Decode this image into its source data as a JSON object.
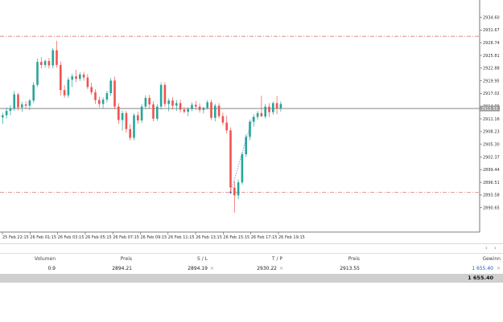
{
  "chart": {
    "price_min": 2888.0,
    "price_max": 2936.0,
    "price_ticks": [
      "2934.60",
      "2931.67",
      "2928.74",
      "2925.81",
      "2922.88",
      "2919.95",
      "2917.02",
      "2914.09",
      "2911.16",
      "2908.23",
      "2905.30",
      "2902.37",
      "2899.44",
      "2896.51",
      "2893.58",
      "2890.65"
    ],
    "current_price_label": "2913.55",
    "tp_level": 2930.22,
    "sl_level": 2894.19,
    "entry_level": 2894.21,
    "current_price": 2913.55,
    "time_labels": [
      "25 Feb 22:15",
      "26 Feb 01:15",
      "26 Feb 03:15",
      "26 Feb 05:15",
      "26 Feb 07:15",
      "26 Feb 09:15",
      "26 Feb 11:15",
      "26 Feb 13:15",
      "26 Feb 15:15",
      "26 Feb 17:15",
      "26 Feb 19:15"
    ],
    "colors": {
      "bull": "#26a69a",
      "bear": "#ef5350",
      "level": "#e07878",
      "current": "#888888",
      "label_bg": "#9a9a9a"
    },
    "candles": [
      [
        2911.5,
        2912.6,
        2910.0,
        2912.0
      ],
      [
        2912.0,
        2913.8,
        2911.2,
        2913.0
      ],
      [
        2913.0,
        2914.3,
        2912.0,
        2913.6
      ],
      [
        2913.6,
        2917.6,
        2913.0,
        2916.8
      ],
      [
        2916.8,
        2917.2,
        2913.1,
        2913.8
      ],
      [
        2913.8,
        2915.1,
        2912.8,
        2914.5
      ],
      [
        2914.5,
        2915.2,
        2913.6,
        2914.2
      ],
      [
        2914.2,
        2915.8,
        2913.2,
        2915.4
      ],
      [
        2915.4,
        2919.6,
        2914.8,
        2919.0
      ],
      [
        2919.0,
        2925.1,
        2918.5,
        2924.3
      ],
      [
        2924.3,
        2925.4,
        2922.8,
        2923.6
      ],
      [
        2923.6,
        2924.9,
        2923.0,
        2924.5
      ],
      [
        2924.5,
        2925.2,
        2922.8,
        2923.5
      ],
      [
        2923.5,
        2927.5,
        2922.8,
        2927.0
      ],
      [
        2927.0,
        2929.2,
        2923.0,
        2923.6
      ],
      [
        2923.6,
        2924.4,
        2916.6,
        2917.8
      ],
      [
        2917.8,
        2918.9,
        2916.0,
        2916.6
      ],
      [
        2916.6,
        2920.8,
        2916.0,
        2920.2
      ],
      [
        2920.2,
        2921.6,
        2918.5,
        2921.0
      ],
      [
        2921.0,
        2922.5,
        2919.6,
        2920.4
      ],
      [
        2920.4,
        2921.9,
        2919.9,
        2921.4
      ],
      [
        2921.4,
        2922.0,
        2920.0,
        2920.7
      ],
      [
        2920.7,
        2921.5,
        2918.0,
        2918.5
      ],
      [
        2918.5,
        2919.5,
        2916.7,
        2917.3
      ],
      [
        2917.3,
        2918.0,
        2914.6,
        2915.5
      ],
      [
        2915.5,
        2916.3,
        2913.8,
        2914.6
      ],
      [
        2914.6,
        2916.1,
        2913.6,
        2915.6
      ],
      [
        2915.6,
        2917.6,
        2915.0,
        2917.1
      ],
      [
        2917.1,
        2920.6,
        2916.5,
        2920.0
      ],
      [
        2920.0,
        2920.9,
        2913.4,
        2914.0
      ],
      [
        2914.0,
        2914.8,
        2910.0,
        2910.9
      ],
      [
        2910.9,
        2913.1,
        2908.5,
        2912.5
      ],
      [
        2912.5,
        2913.0,
        2908.0,
        2908.8
      ],
      [
        2908.8,
        2909.9,
        2906.2,
        2906.8
      ],
      [
        2906.8,
        2912.5,
        2906.2,
        2912.0
      ],
      [
        2912.0,
        2912.8,
        2910.0,
        2910.8
      ],
      [
        2910.8,
        2914.6,
        2910.2,
        2914.0
      ],
      [
        2914.0,
        2916.6,
        2913.5,
        2916.0
      ],
      [
        2916.0,
        2916.7,
        2913.6,
        2914.5
      ],
      [
        2914.5,
        2915.2,
        2910.6,
        2911.2
      ],
      [
        2911.2,
        2914.6,
        2910.7,
        2914.0
      ],
      [
        2914.0,
        2919.6,
        2913.3,
        2919.0
      ],
      [
        2919.0,
        2919.6,
        2914.0,
        2914.6
      ],
      [
        2914.6,
        2915.9,
        2912.9,
        2915.4
      ],
      [
        2915.4,
        2916.2,
        2913.3,
        2914.2
      ],
      [
        2914.2,
        2915.5,
        2913.0,
        2914.8
      ],
      [
        2914.8,
        2915.6,
        2912.6,
        2913.3
      ],
      [
        2913.3,
        2913.9,
        2912.4,
        2912.8
      ],
      [
        2912.8,
        2913.9,
        2911.8,
        2913.4
      ],
      [
        2913.4,
        2915.0,
        2912.9,
        2914.4
      ],
      [
        2914.4,
        2915.3,
        2913.2,
        2914.0
      ],
      [
        2914.0,
        2914.7,
        2912.6,
        2913.2
      ],
      [
        2913.2,
        2914.0,
        2912.4,
        2913.7
      ],
      [
        2913.7,
        2915.5,
        2913.3,
        2915.0
      ],
      [
        2915.0,
        2915.6,
        2910.9,
        2911.4
      ],
      [
        2911.4,
        2914.7,
        2910.6,
        2914.2
      ],
      [
        2914.2,
        2914.8,
        2911.3,
        2911.8
      ],
      [
        2911.8,
        2912.6,
        2909.7,
        2910.3
      ],
      [
        2910.3,
        2911.9,
        2907.8,
        2908.5
      ],
      [
        2908.5,
        2909.2,
        2893.8,
        2895.3
      ],
      [
        2895.3,
        2896.8,
        2889.5,
        2893.5
      ],
      [
        2893.5,
        2897.2,
        2892.6,
        2896.5
      ],
      [
        2896.5,
        2903.5,
        2896.0,
        2903.0
      ],
      [
        2903.0,
        2907.6,
        2902.4,
        2907.0
      ],
      [
        2907.0,
        2911.0,
        2906.2,
        2910.5
      ],
      [
        2910.5,
        2912.2,
        2909.4,
        2911.6
      ],
      [
        2911.6,
        2913.0,
        2911.0,
        2912.5
      ],
      [
        2912.5,
        2916.5,
        2911.8,
        2911.7
      ],
      [
        2911.7,
        2914.6,
        2911.2,
        2914.0
      ],
      [
        2914.0,
        2914.8,
        2911.6,
        2912.7
      ],
      [
        2912.7,
        2915.2,
        2912.1,
        2914.8
      ],
      [
        2914.8,
        2916.4,
        2912.2,
        2913.6
      ],
      [
        2913.6,
        2915.2,
        2912.8,
        2914.6
      ]
    ]
  },
  "table": {
    "headers": {
      "volume": "Volumen",
      "price": "Preis",
      "sl": "S / L",
      "tp": "T / P",
      "current_price": "Preis",
      "profit": "Gewinn"
    },
    "row": {
      "volume": "0.9",
      "price": "2894.21",
      "sl": "2894.19",
      "tp": "2930.22",
      "current_price": "2913.55",
      "profit": "1 655.40"
    },
    "close_glyph": "×",
    "total": "1 655.40",
    "scroll_left": "‹",
    "scroll_right": "›"
  }
}
